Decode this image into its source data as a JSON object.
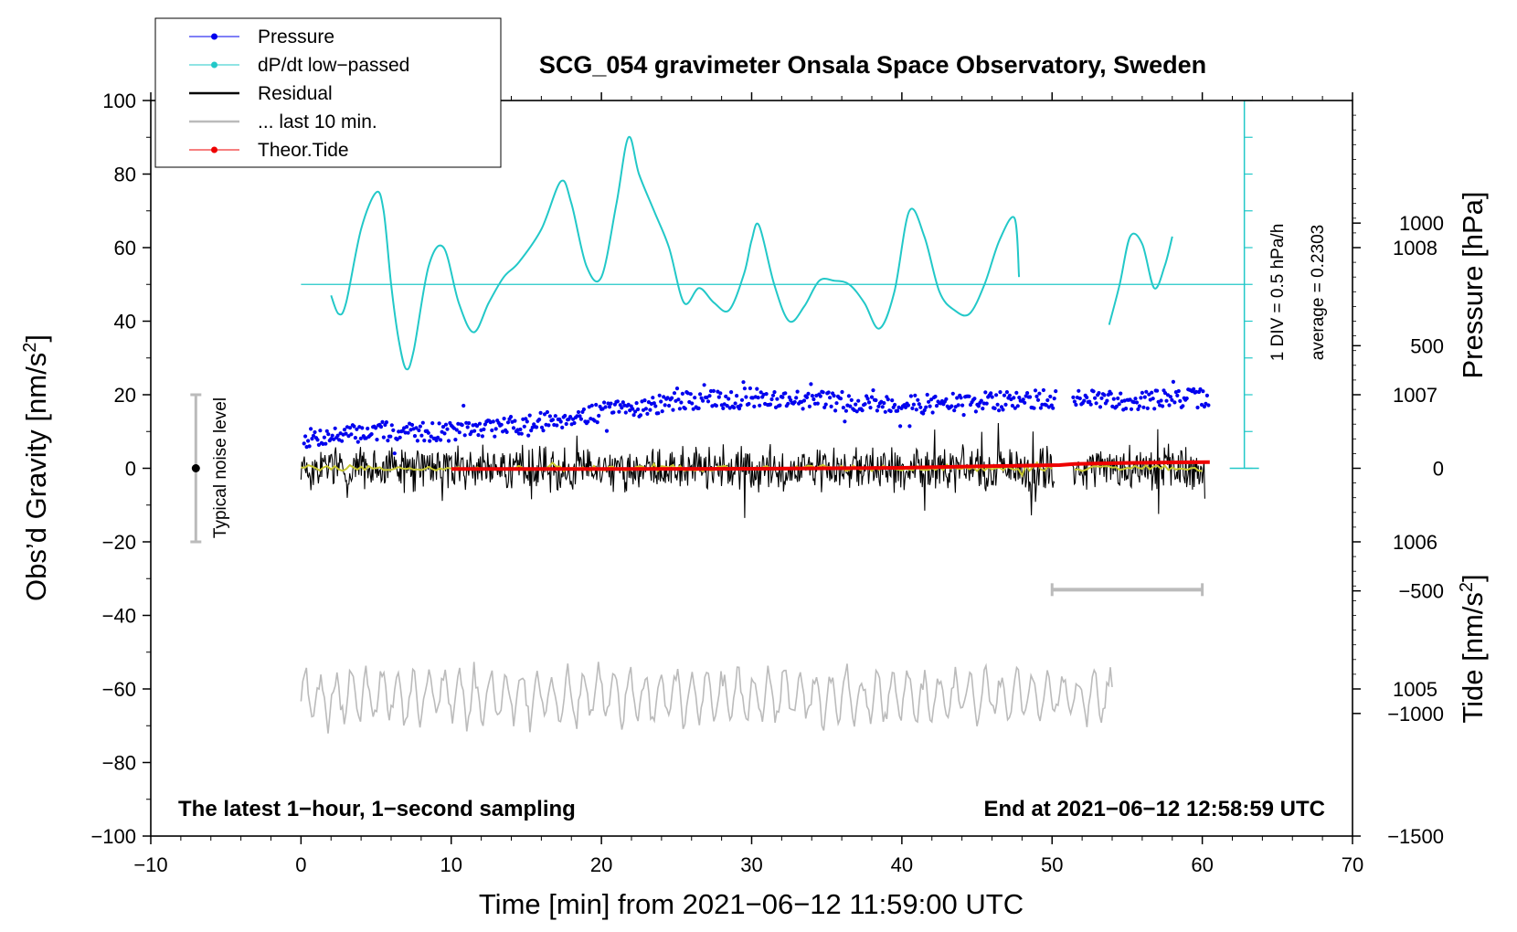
{
  "chart_data": {
    "type": "line",
    "title": "SCG_054 gravimeter Onsala Space Observatory, Sweden",
    "xlabel": "Time [min] from 2021−06−12 11:59:00 UTC",
    "ylabel_main": "Obs’d Gravity [nm/s",
    "ylabel_main_sup": "2",
    "ylabel_main_close": "]",
    "ylabel_pressure": "Pressure [hPa]",
    "ylabel_tide": "Tide [nm/s",
    "ylabel_tide_sup": "2",
    "ylabel_tide_close": "]",
    "xlim": [
      -10,
      70
    ],
    "ylim": [
      -100,
      100
    ],
    "pressure_ylim": [
      1004,
      1009
    ],
    "tide_ylim": [
      -1500,
      1500
    ],
    "xticks": [
      "−10",
      "0",
      "10",
      "20",
      "30",
      "40",
      "50",
      "60",
      "70"
    ],
    "yticks": [
      "−100",
      "−80",
      "−60",
      "−40",
      "−20",
      "0",
      "20",
      "40",
      "60",
      "80",
      "100"
    ],
    "pressure_ticks": [
      "1005",
      "1006",
      "1007",
      "1008"
    ],
    "tide_ticks": [
      "−1500",
      "−1000",
      "−500",
      "0",
      "500",
      "1000"
    ],
    "legend": [
      {
        "label": "Pressure",
        "color": "#0000ee",
        "marker": true
      },
      {
        "label": "dP/dt low−passed",
        "color": "#22c8c8",
        "marker": true
      },
      {
        "label": "Residual",
        "color": "#000000",
        "marker": false
      },
      {
        "label": "... last 10 min.",
        "color": "#bbbbbb",
        "marker": false
      },
      {
        "label": "Theor.Tide",
        "color": "#ee0000",
        "marker": true
      }
    ],
    "series": [
      {
        "name": "Pressure",
        "axis": "pressure",
        "color": "#0000ee",
        "x": [
          0,
          5,
          10,
          15,
          20,
          25,
          30,
          35,
          40,
          45,
          50,
          51.5,
          55,
          60.5
        ],
        "values": [
          1006.7,
          1006.75,
          1006.75,
          1006.8,
          1006.88,
          1006.95,
          1006.98,
          1006.96,
          1006.93,
          1006.95,
          1006.97,
          1006.97,
          1006.96,
          1006.98
        ]
      },
      {
        "name": "dP/dt low−passed",
        "axis": "gravity_div",
        "color": "#22c8c8",
        "x": [
          2,
          2.5,
          3,
          4,
          5,
          5.5,
          6,
          6.5,
          7,
          7.5,
          8.5,
          9.5,
          10.5,
          11.5,
          12.5,
          13.5,
          14.5,
          16,
          17.3,
          18,
          19,
          20,
          21,
          21.8,
          22.5,
          23.5,
          24.5,
          25.5,
          26.5,
          27.5,
          28.5,
          29.5,
          30,
          30.5,
          31.5,
          32.5,
          33.5,
          34.5,
          35.5,
          36.5,
          37.5,
          38.5,
          39.5,
          40.5,
          41.5,
          42.5,
          43.5,
          44.5,
          45.5,
          46.5,
          47.5,
          47.8
        ],
        "values": [
          47,
          42,
          45,
          65,
          75,
          70,
          50,
          35,
          27,
          32,
          55,
          60,
          45,
          37,
          45,
          52,
          56,
          65,
          78,
          72,
          55,
          52,
          72,
          90,
          80,
          70,
          60,
          45,
          49,
          45,
          43,
          53,
          62,
          66,
          50,
          40,
          44,
          51,
          51,
          50,
          45,
          38,
          48,
          70,
          63,
          48,
          43,
          42,
          50,
          62,
          68,
          52
        ]
      },
      {
        "name": "dP/dt low−passed (after gap)",
        "axis": "gravity_div",
        "color": "#22c8c8",
        "x": [
          53.8,
          54.5,
          55.2,
          56,
          56.8,
          57.5,
          58
        ],
        "values": [
          39,
          50,
          63,
          61,
          49,
          55,
          63
        ]
      },
      {
        "name": "Residual",
        "axis": "gravity",
        "color": "#000000",
        "x_range": [
          0,
          60.2
        ],
        "gap": [
          50.2,
          51.3
        ],
        "amplitude": 7
      },
      {
        "name": "Residual (smoothed)",
        "axis": "gravity",
        "color": "#c8c830",
        "x_range": [
          0,
          60.2
        ],
        "gap": [
          50.2,
          51.3
        ],
        "amplitude": 1
      },
      {
        "name": "... last 10 min.",
        "axis": "gravity",
        "color": "#bbbbbb",
        "x_range": [
          0,
          54
        ],
        "center": -62,
        "amplitude": 9
      },
      {
        "name": "Theor.Tide",
        "axis": "tide",
        "color": "#ee0000",
        "x": [
          0.5,
          10,
          20,
          30,
          40,
          45,
          50.5,
          51.5,
          55,
          60.5
        ],
        "values": [
          5,
          -3,
          -3,
          -2,
          2,
          8,
          13,
          18,
          22,
          25
        ]
      }
    ],
    "reference_line": {
      "label": "average",
      "value": 50
    },
    "noise_bar": {
      "label": "Typical noise level",
      "x": -7,
      "center": 0,
      "low": -20,
      "high": 20
    },
    "window_bar": {
      "x": [
        50,
        60
      ],
      "level": -33
    },
    "scale_note": "1 DIV = 0.5 hPa/h",
    "average_note": "average = 0.2303",
    "left_note": "The latest 1−hour, 1−second sampling",
    "right_note": "End at 2021−06−12 12:58:59 UTC"
  }
}
